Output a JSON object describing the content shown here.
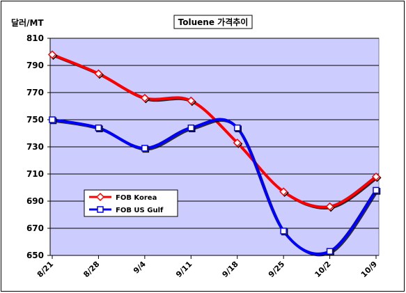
{
  "chart_data": {
    "type": "line",
    "title": "Toluene 가격추이",
    "ylabel": "달러/MT",
    "xlabel": "",
    "categories": [
      "8/21",
      "8/28",
      "9/4",
      "9/11",
      "9/18",
      "9/25",
      "10/2",
      "10/9"
    ],
    "ylim": [
      650,
      810
    ],
    "yticks": [
      650,
      670,
      690,
      710,
      730,
      750,
      770,
      790,
      810
    ],
    "grid": true,
    "legend_position": "lower-left",
    "plot_background": "#ccccff",
    "series": [
      {
        "name": "FOB Korea",
        "color": "#ff0000",
        "marker_color": "#ff0000",
        "marker": "diamond",
        "values": [
          798,
          784,
          766,
          764,
          733,
          697,
          686,
          708
        ]
      },
      {
        "name": "FOB US Gulf",
        "color": "#0000ff",
        "marker_color": "#0000ff",
        "marker": "square",
        "values": [
          750,
          744,
          729,
          744,
          744,
          668,
          653,
          698
        ]
      }
    ]
  }
}
